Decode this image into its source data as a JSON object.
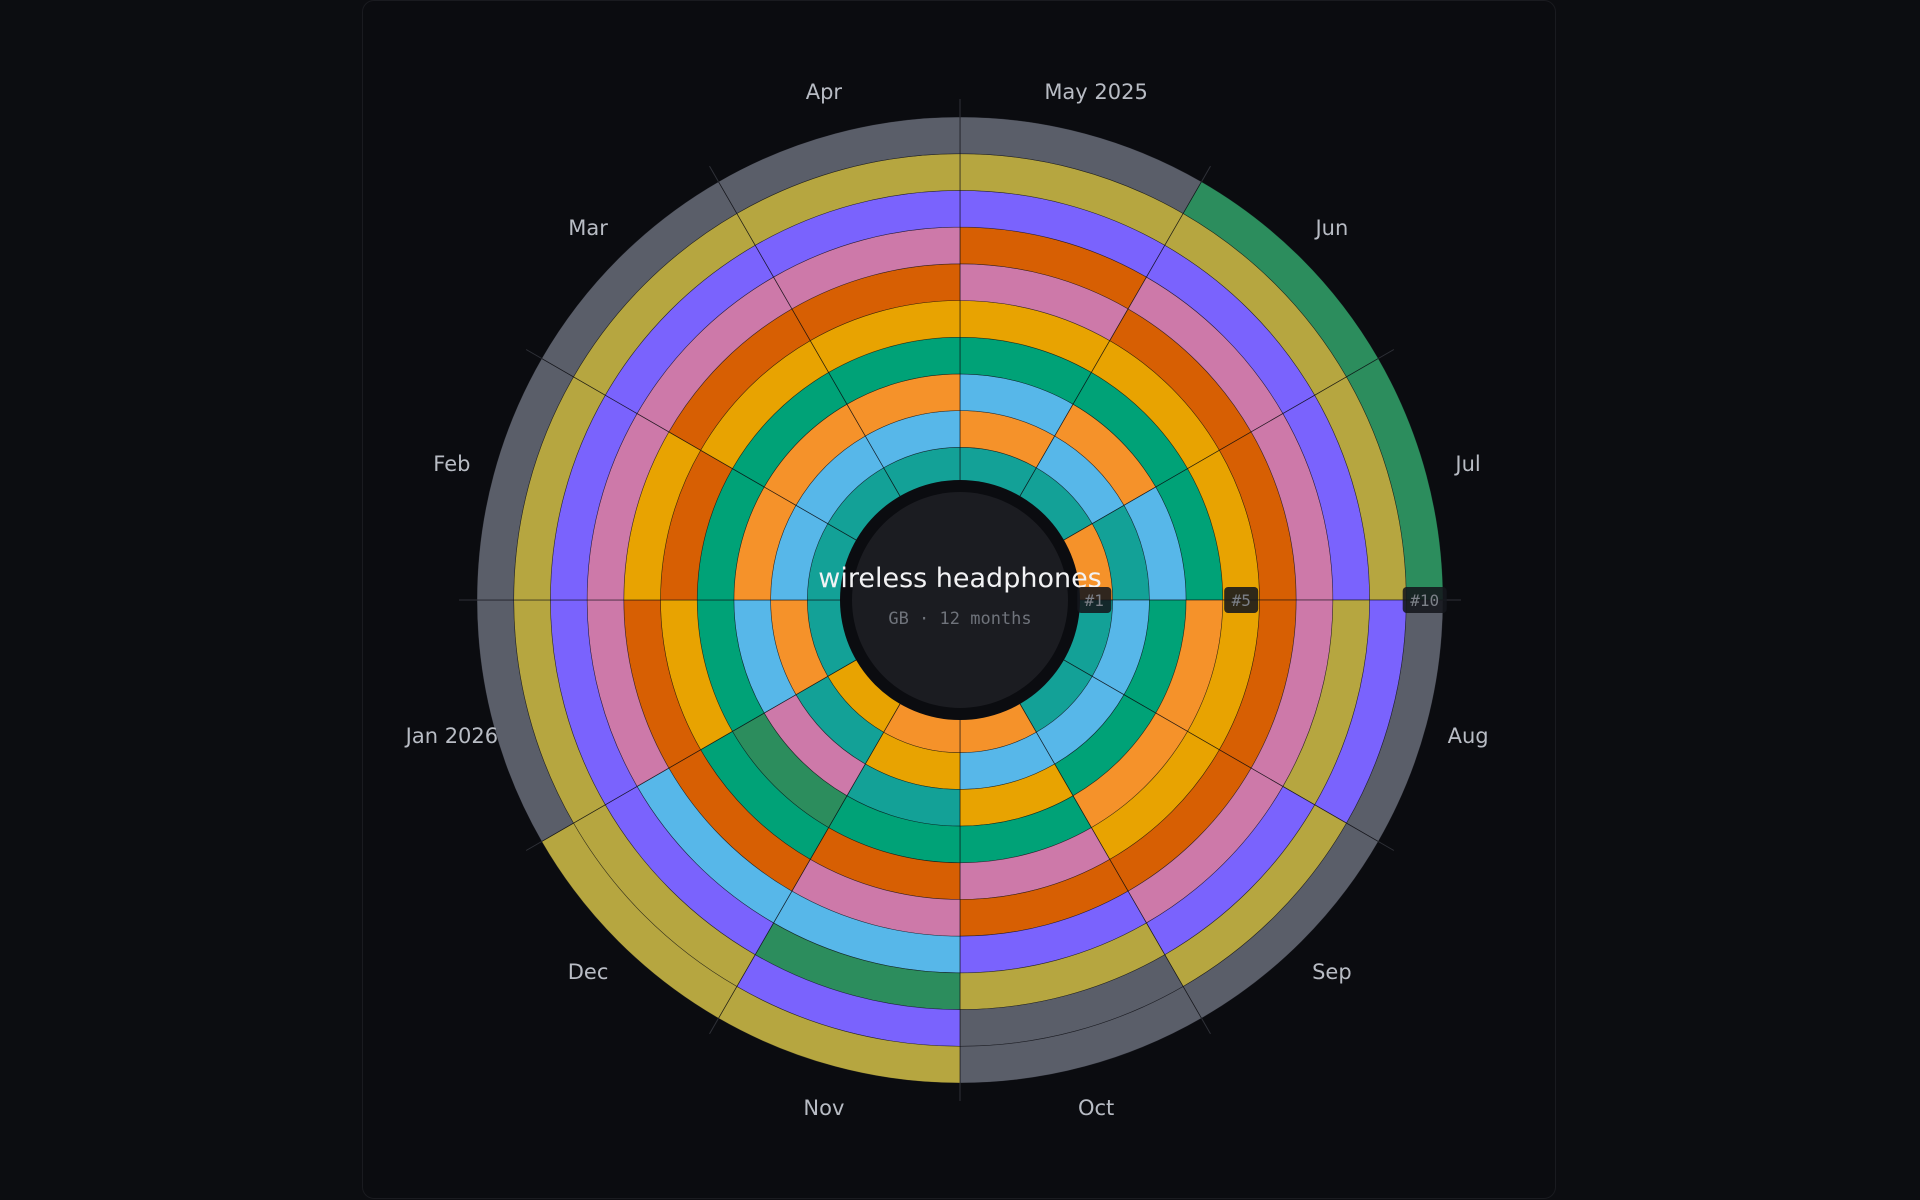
{
  "chart_data": {
    "type": "radial-rank-bump",
    "title": "wireless headphones",
    "subtitle": "GB · 12 months",
    "months": [
      "May 2025",
      "Jun",
      "Jul",
      "Aug",
      "Sep",
      "Oct",
      "Nov",
      "Dec",
      "Jan 2026",
      "Feb",
      "Mar",
      "Apr"
    ],
    "rank_labels": [
      "#1",
      "#5",
      "#10"
    ],
    "palette": {
      "teal": "#13a197",
      "sky": "#57b7e9",
      "orange": "#f5922a",
      "green": "#00a277",
      "gold": "#e8a301",
      "rust": "#d75f03",
      "pink": "#cd79a9",
      "violet": "#7a63fd",
      "olive": "#b6a640",
      "slate": "#5a5e69",
      "forest": "#2c8d5d"
    },
    "ring_colors_by_month": [
      [
        "teal",
        "orange",
        "sky",
        "green",
        "gold",
        "pink",
        "rust",
        "violet",
        "olive",
        "slate"
      ],
      [
        "teal",
        "sky",
        "orange",
        "green",
        "gold",
        "rust",
        "pink",
        "violet",
        "olive",
        "forest"
      ],
      [
        "orange",
        "teal",
        "sky",
        "green",
        "gold",
        "rust",
        "pink",
        "violet",
        "olive",
        "forest"
      ],
      [
        "teal",
        "sky",
        "green",
        "orange",
        "gold",
        "rust",
        "pink",
        "olive",
        "violet",
        "slate"
      ],
      [
        "teal",
        "sky",
        "green",
        "orange",
        "gold",
        "rust",
        "pink",
        "violet",
        "olive",
        "slate"
      ],
      [
        "orange",
        "sky",
        "gold",
        "green",
        "pink",
        "rust",
        "violet",
        "olive",
        "slate",
        "slate"
      ],
      [
        "orange",
        "gold",
        "teal",
        "green",
        "rust",
        "pink",
        "sky",
        "forest",
        "violet",
        "olive"
      ],
      [
        "gold",
        "teal",
        "pink",
        "forest",
        "green",
        "rust",
        "sky",
        "violet",
        "olive",
        "olive"
      ],
      [
        "teal",
        "orange",
        "sky",
        "green",
        "gold",
        "rust",
        "pink",
        "violet",
        "olive",
        "slate"
      ],
      [
        "teal",
        "sky",
        "orange",
        "green",
        "rust",
        "gold",
        "pink",
        "violet",
        "olive",
        "slate"
      ],
      [
        "teal",
        "sky",
        "orange",
        "green",
        "gold",
        "rust",
        "pink",
        "violet",
        "olive",
        "slate"
      ],
      [
        "teal",
        "sky",
        "orange",
        "green",
        "gold",
        "rust",
        "pink",
        "violet",
        "olive",
        "slate"
      ]
    ]
  }
}
